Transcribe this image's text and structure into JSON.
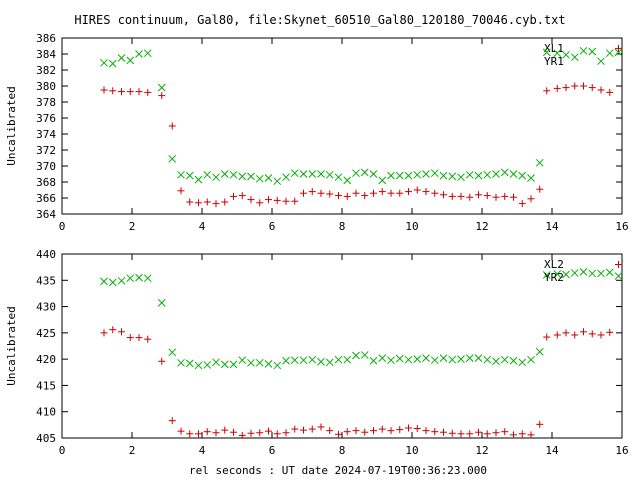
{
  "figure": {
    "title": "HIRES continuum, Gal80, file:Skynet_60510_Gal80_120180_70046.cyb.txt",
    "xlabel": "rel seconds : UT date 2024-07-19T00:36:23.000"
  },
  "colors": {
    "red": "#cc0000",
    "green": "#00b000",
    "axis": "#000000"
  },
  "chart_data": [
    {
      "type": "scatter",
      "title": "HIRES continuum, Gal80, file:Skynet_60510_Gal80_120180_70046.cyb.txt",
      "xlabel": "",
      "ylabel": "Uncalibrated",
      "xlim": [
        0,
        16
      ],
      "ylim": [
        364,
        386
      ],
      "xticks": [
        0,
        2,
        4,
        6,
        8,
        10,
        12,
        14,
        16
      ],
      "yticks": [
        364,
        366,
        368,
        370,
        372,
        374,
        376,
        378,
        380,
        382,
        384,
        386
      ],
      "legend": "top-right",
      "series": [
        {
          "name": "XL1",
          "marker": "plus",
          "color": "#cc0000",
          "x": [
            1.2,
            1.45,
            1.7,
            1.95,
            2.2,
            2.45,
            2.85,
            3.15,
            3.4,
            3.65,
            3.9,
            4.15,
            4.4,
            4.65,
            4.9,
            5.15,
            5.4,
            5.65,
            5.9,
            6.15,
            6.4,
            6.65,
            6.9,
            7.15,
            7.4,
            7.65,
            7.9,
            8.15,
            8.4,
            8.65,
            8.9,
            9.15,
            9.4,
            9.65,
            9.9,
            10.15,
            10.4,
            10.65,
            10.9,
            11.15,
            11.4,
            11.65,
            11.9,
            12.15,
            12.4,
            12.65,
            12.9,
            13.15,
            13.4,
            13.65,
            13.85,
            14.15,
            14.4,
            14.65,
            14.9,
            15.15,
            15.4,
            15.65,
            15.9
          ],
          "y": [
            379.5,
            379.4,
            379.3,
            379.3,
            379.3,
            379.2,
            378.8,
            375.0,
            366.9,
            365.5,
            365.4,
            365.5,
            365.3,
            365.5,
            366.2,
            366.3,
            365.8,
            365.4,
            365.8,
            365.7,
            365.6,
            365.6,
            366.6,
            366.8,
            366.6,
            366.5,
            366.3,
            366.2,
            366.6,
            366.3,
            366.6,
            366.8,
            366.6,
            366.6,
            366.8,
            367.0,
            366.8,
            366.6,
            366.4,
            366.2,
            366.2,
            366.1,
            366.4,
            366.3,
            366.1,
            366.2,
            366.1,
            365.3,
            365.9,
            367.1,
            379.4,
            379.7,
            379.8,
            380.0,
            380.0,
            379.8,
            379.5,
            379.2,
            384.7
          ],
          "x_order_note": ""
        },
        {
          "name": "YR1",
          "marker": "cross",
          "color": "#00b000",
          "x": [
            1.2,
            1.45,
            1.7,
            1.95,
            2.2,
            2.45,
            2.85,
            3.15,
            3.4,
            3.65,
            3.9,
            4.15,
            4.4,
            4.65,
            4.9,
            5.15,
            5.4,
            5.65,
            5.9,
            6.15,
            6.4,
            6.65,
            6.9,
            7.15,
            7.4,
            7.65,
            7.9,
            8.15,
            8.4,
            8.65,
            8.9,
            9.15,
            9.4,
            9.65,
            9.9,
            10.15,
            10.4,
            10.65,
            10.9,
            11.15,
            11.4,
            11.65,
            11.9,
            12.15,
            12.4,
            12.65,
            12.9,
            13.15,
            13.4,
            13.65,
            13.85,
            14.15,
            14.4,
            14.65,
            14.9,
            15.15,
            15.4,
            15.65,
            15.9
          ],
          "y": [
            382.9,
            382.8,
            383.5,
            383.2,
            384.0,
            384.1,
            379.8,
            370.9,
            368.9,
            368.8,
            368.3,
            368.9,
            368.6,
            369.0,
            368.9,
            368.7,
            368.7,
            368.4,
            368.5,
            368.1,
            368.6,
            369.1,
            369.0,
            369.0,
            369.0,
            368.9,
            368.6,
            368.2,
            369.1,
            369.2,
            369.0,
            368.2,
            368.8,
            368.8,
            368.8,
            368.9,
            369.0,
            369.1,
            368.8,
            368.7,
            368.6,
            368.9,
            368.8,
            368.9,
            369.0,
            369.2,
            369.0,
            368.8,
            368.5,
            370.4,
            384.2,
            384.1,
            383.9,
            383.6,
            384.4,
            384.3,
            383.1,
            384.1,
            384.2
          ]
        }
      ]
    },
    {
      "type": "scatter",
      "title": "",
      "xlabel": "rel seconds : UT date 2024-07-19T00:36:23.000",
      "ylabel": "Uncalibrated",
      "xlim": [
        0,
        16
      ],
      "ylim": [
        405,
        440
      ],
      "xticks": [
        0,
        2,
        4,
        6,
        8,
        10,
        12,
        14,
        16
      ],
      "yticks": [
        405,
        410,
        415,
        420,
        425,
        430,
        435,
        440
      ],
      "legend": "top-right",
      "series": [
        {
          "name": "XL2",
          "marker": "plus",
          "color": "#cc0000",
          "x": [
            1.2,
            1.45,
            1.7,
            1.95,
            2.2,
            2.45,
            2.85,
            3.15,
            3.4,
            3.65,
            3.9,
            4.15,
            4.4,
            4.65,
            4.9,
            5.15,
            5.4,
            5.65,
            5.9,
            6.15,
            6.4,
            6.65,
            6.9,
            7.15,
            7.4,
            7.65,
            7.9,
            8.15,
            8.4,
            8.65,
            8.9,
            9.15,
            9.4,
            9.65,
            9.9,
            10.15,
            10.4,
            10.65,
            10.9,
            11.15,
            11.4,
            11.65,
            11.9,
            12.15,
            12.4,
            12.65,
            12.9,
            13.15,
            13.4,
            13.65,
            13.85,
            14.15,
            14.4,
            14.65,
            14.9,
            15.15,
            15.4,
            15.65,
            15.9
          ],
          "y": [
            425.0,
            425.6,
            425.2,
            424.1,
            424.1,
            423.8,
            419.6,
            408.3,
            406.3,
            405.8,
            405.8,
            406.2,
            406.0,
            406.5,
            406.1,
            405.5,
            405.9,
            406.0,
            406.3,
            405.8,
            406.0,
            406.7,
            406.5,
            406.7,
            407.1,
            406.4,
            405.7,
            406.2,
            406.4,
            406.1,
            406.4,
            406.7,
            406.4,
            406.6,
            406.9,
            406.8,
            406.4,
            406.2,
            406.1,
            405.9,
            405.8,
            405.8,
            406.1,
            405.8,
            406.0,
            406.2,
            405.6,
            405.8,
            405.6,
            407.6,
            424.2,
            424.6,
            425.0,
            424.6,
            425.2,
            424.8,
            424.6,
            425.1,
            438.0
          ]
        },
        {
          "name": "YR2",
          "marker": "cross",
          "color": "#00b000",
          "x": [
            1.2,
            1.45,
            1.7,
            1.95,
            2.2,
            2.45,
            2.85,
            3.15,
            3.4,
            3.65,
            3.9,
            4.15,
            4.4,
            4.65,
            4.9,
            5.15,
            5.4,
            5.65,
            5.9,
            6.15,
            6.4,
            6.65,
            6.9,
            7.15,
            7.4,
            7.65,
            7.9,
            8.15,
            8.4,
            8.65,
            8.9,
            9.15,
            9.4,
            9.65,
            9.9,
            10.15,
            10.4,
            10.65,
            10.9,
            11.15,
            11.4,
            11.65,
            11.9,
            12.15,
            12.4,
            12.65,
            12.9,
            13.15,
            13.4,
            13.65,
            13.85,
            14.15,
            14.4,
            14.65,
            14.9,
            15.15,
            15.4,
            15.65,
            15.9
          ],
          "y": [
            434.8,
            434.6,
            434.9,
            435.4,
            435.5,
            435.4,
            430.7,
            421.3,
            419.3,
            419.2,
            418.8,
            418.9,
            419.4,
            419.0,
            419.0,
            419.8,
            419.3,
            419.3,
            419.1,
            418.8,
            419.7,
            419.8,
            419.8,
            419.9,
            419.5,
            419.4,
            419.9,
            419.9,
            420.7,
            420.8,
            419.7,
            420.2,
            419.8,
            420.1,
            419.9,
            420.0,
            420.2,
            419.8,
            420.2,
            419.9,
            420.0,
            420.2,
            420.2,
            419.9,
            419.6,
            419.9,
            419.7,
            419.4,
            419.9,
            421.4,
            436.0,
            436.2,
            436.1,
            436.4,
            436.6,
            436.3,
            436.3,
            436.5,
            435.8
          ]
        }
      ]
    }
  ]
}
